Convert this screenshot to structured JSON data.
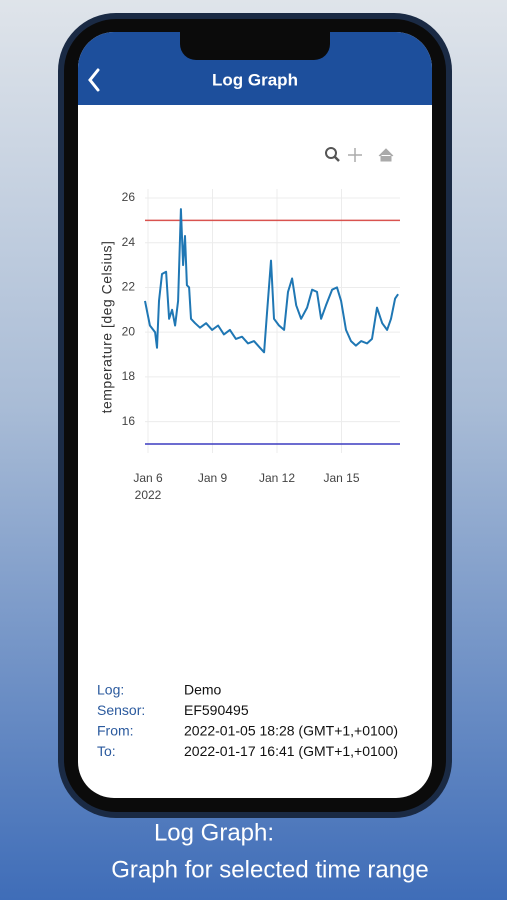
{
  "header": {
    "title": "Log Graph"
  },
  "chart_data": {
    "type": "line",
    "y_axis_label": "temperature [deg Celsius]",
    "xlim": [
      5.86,
      17.72
    ],
    "xticks": [
      {
        "value": 6,
        "label": "Jan 6"
      },
      {
        "value": 9,
        "label": "Jan 9"
      },
      {
        "value": 12,
        "label": "Jan 12"
      },
      {
        "value": 15,
        "label": "Jan 15"
      }
    ],
    "x_year_label": "2022",
    "ylim": [
      14.6,
      26.4
    ],
    "yticks": [
      16,
      18,
      20,
      22,
      24,
      26
    ],
    "grid": true,
    "series": [
      {
        "color": "#1f77b4",
        "x": [
          5.86,
          6.09,
          6.33,
          6.42,
          6.51,
          6.65,
          6.84,
          6.98,
          7.12,
          7.26,
          7.4,
          7.53,
          7.63,
          7.72,
          7.81,
          7.91,
          8.0,
          8.19,
          8.42,
          8.7,
          8.98,
          9.26,
          9.53,
          9.81,
          10.09,
          10.37,
          10.65,
          10.93,
          11.21,
          11.4,
          11.53,
          11.72,
          11.86,
          12.09,
          12.33,
          12.51,
          12.7,
          12.89,
          13.12,
          13.4,
          13.63,
          13.86,
          14.05,
          14.28,
          14.56,
          14.79,
          14.98,
          15.21,
          15.44,
          15.67,
          15.91,
          16.19,
          16.42,
          16.65,
          16.89,
          17.12,
          17.3,
          17.49,
          17.63
        ],
        "values": [
          21.4,
          20.3,
          20.0,
          19.3,
          21.4,
          22.6,
          22.7,
          20.6,
          21.0,
          20.3,
          21.4,
          25.5,
          23.0,
          24.3,
          22.1,
          22.0,
          20.6,
          20.4,
          20.2,
          20.4,
          20.1,
          20.3,
          19.9,
          20.1,
          19.7,
          19.8,
          19.5,
          19.6,
          19.3,
          19.1,
          20.8,
          23.2,
          20.6,
          20.3,
          20.1,
          21.8,
          22.4,
          21.2,
          20.6,
          21.1,
          21.9,
          21.8,
          20.6,
          21.2,
          21.9,
          22.0,
          21.4,
          20.1,
          19.6,
          19.4,
          19.6,
          19.5,
          19.7,
          21.1,
          20.4,
          20.1,
          20.6,
          21.5,
          21.7
        ]
      }
    ],
    "thresholds": [
      {
        "value": 25,
        "color": "#d9534f"
      },
      {
        "value": 15,
        "color": "#3c3cc0"
      }
    ]
  },
  "info": [
    {
      "label": "Log:",
      "value": "Demo"
    },
    {
      "label": "Sensor:",
      "value": "EF590495"
    },
    {
      "label": "From:",
      "value": "2022-01-05 18:28 (GMT+1,+0100)"
    },
    {
      "label": "To:",
      "value": "2022-01-17 16:41 (GMT+1,+0100)"
    }
  ],
  "caption": [
    "Log Graph:",
    "Graph for selected time range"
  ]
}
